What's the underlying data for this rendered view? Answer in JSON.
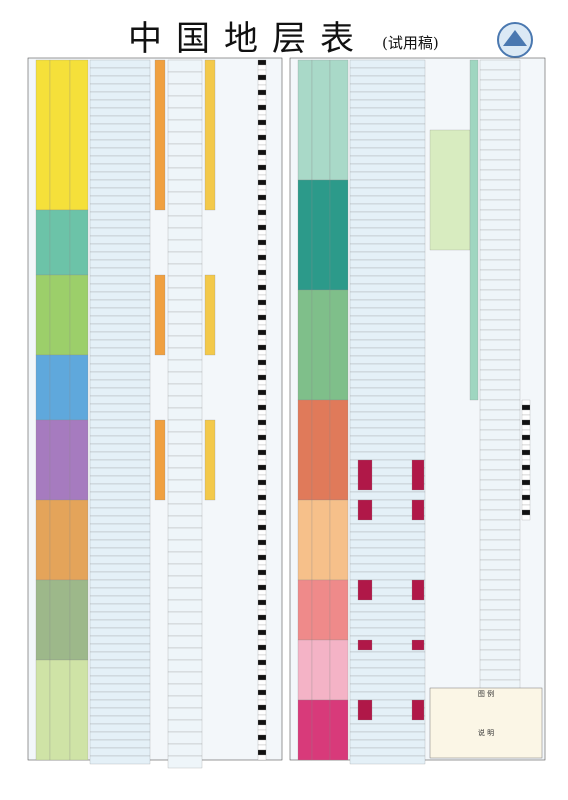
{
  "header": {
    "title": "中国地层表",
    "subtitle": "(试用稿)"
  },
  "legend": {
    "title": "图 例"
  },
  "notes": {
    "title": "说 明"
  }
}
